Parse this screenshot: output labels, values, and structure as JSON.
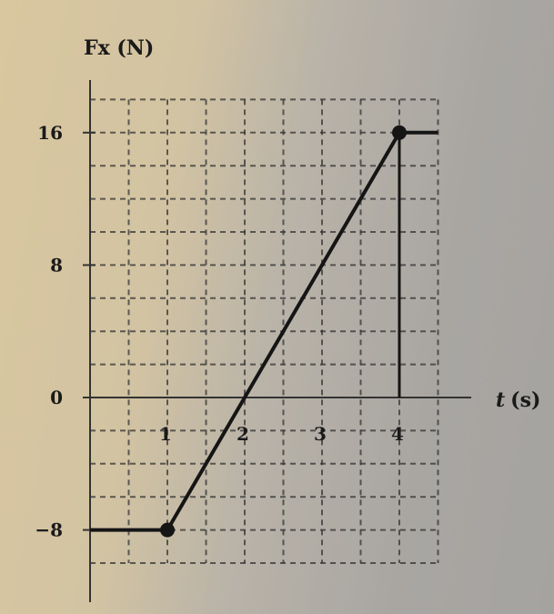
{
  "chart_data": {
    "type": "line",
    "xlabel": "t (s)",
    "ylabel": "Fx (N)",
    "ylabel_parts": {
      "symbol": "F",
      "subscript": "x",
      "unit": "(N)"
    },
    "xlabel_parts": {
      "symbol": "t",
      "unit": "(s)"
    },
    "x_ticks": [
      1,
      2,
      3,
      4
    ],
    "x_tick_labels": [
      "1",
      "2",
      "3",
      "4"
    ],
    "y_ticks": [
      16,
      8,
      0,
      -8
    ],
    "y_tick_labels": [
      "16",
      "8",
      "0",
      "−8"
    ],
    "xlim": [
      0,
      4.5
    ],
    "ylim": [
      -10,
      18
    ],
    "grid": true,
    "grid_style": "dashed",
    "grid_x_step": 0.5,
    "grid_y_step": 2,
    "series": [
      {
        "x": [
          0,
          1,
          4,
          4.5
        ],
        "y": [
          -8,
          -8,
          16,
          16
        ]
      }
    ],
    "marked_points": [
      {
        "x": 1,
        "y": -8
      },
      {
        "x": 4,
        "y": 16
      }
    ],
    "drop_lines": [
      {
        "x": 4,
        "y_from": 0,
        "y_to": 16
      }
    ],
    "line_color": "#151515"
  }
}
